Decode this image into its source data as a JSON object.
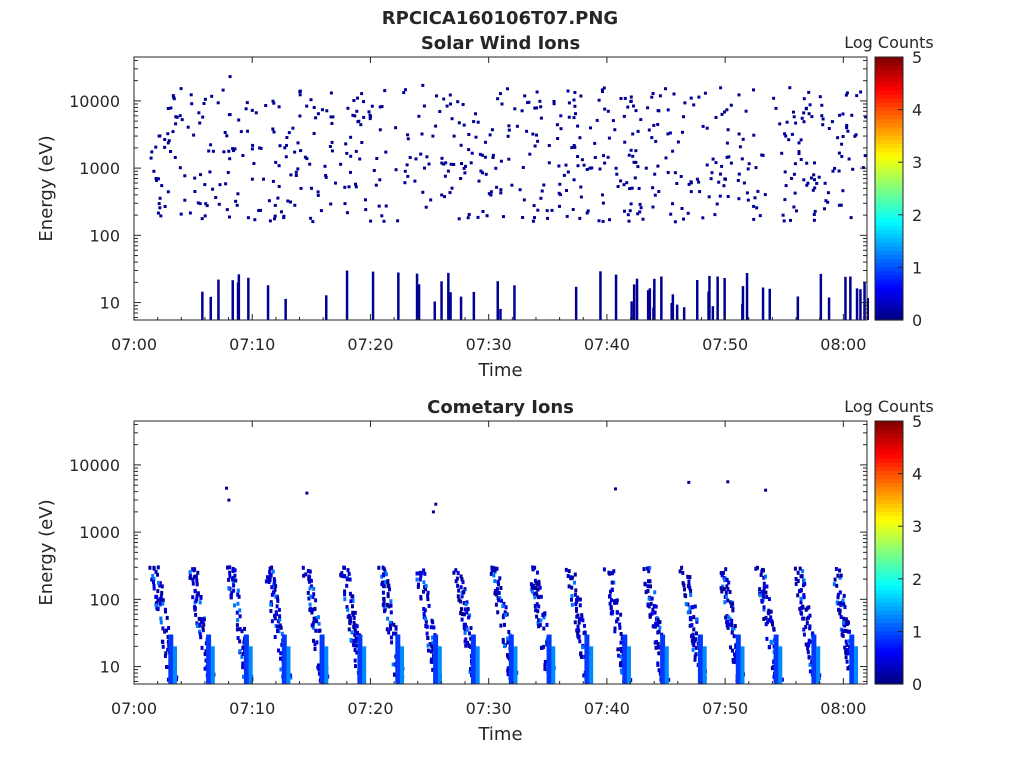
{
  "figure": {
    "title": "RPCICA160106T07.PNG"
  },
  "chart_data": [
    {
      "type": "heatmap",
      "title": "Solar Wind Ions",
      "xlabel": "Time",
      "ylabel": "Energy (eV)",
      "x_ticks": [
        "07:00",
        "07:10",
        "07:20",
        "07:30",
        "07:40",
        "07:50",
        "08:00"
      ],
      "x_range_minutes": [
        0,
        62
      ],
      "y_scale": "log",
      "y_range": [
        5.5,
        45000
      ],
      "y_ticks": [
        {
          "value": 10,
          "label": "10"
        },
        {
          "value": 100,
          "label": "100"
        },
        {
          "value": 1000,
          "label": "1000"
        },
        {
          "value": 10000,
          "label": "10000"
        }
      ],
      "colorbar": {
        "title": "Log Counts",
        "range": [
          0,
          5
        ],
        "ticks": [
          "0",
          "1",
          "2",
          "3",
          "4",
          "5"
        ],
        "colormap": "jet"
      },
      "description_of_data": "sparse single-count (log counts ~0) speckle scattered across 150 eV - 20 keV for the full hour, plus short vertical streaks at 6-30 eV",
      "bins": [
        {
          "t": 3.2,
          "e": 12000,
          "c": 0.1
        },
        {
          "t": 8.0,
          "e": 23000,
          "c": 0.1
        },
        {
          "t": 24.3,
          "e": 17000,
          "c": 0.1
        },
        {
          "t": 2.0,
          "e": 3000,
          "c": 0.1
        },
        {
          "t": 5.5,
          "e": 800,
          "c": 0.1
        },
        {
          "t": 10.5,
          "e": 2000,
          "c": 0.1
        },
        {
          "t": 14.0,
          "e": 500,
          "c": 0.1
        },
        {
          "t": 18.2,
          "e": 1500,
          "c": 0.1
        },
        {
          "t": 22.0,
          "e": 4000,
          "c": 0.1
        },
        {
          "t": 27.5,
          "e": 700,
          "c": 0.1
        },
        {
          "t": 31.0,
          "e": 9000,
          "c": 0.1
        },
        {
          "t": 35.0,
          "e": 1200,
          "c": 0.1
        },
        {
          "t": 39.5,
          "e": 400,
          "c": 0.1
        },
        {
          "t": 44.0,
          "e": 2500,
          "c": 0.1
        },
        {
          "t": 47.0,
          "e": 11000,
          "c": 0.1
        },
        {
          "t": 51.5,
          "e": 600,
          "c": 0.1
        },
        {
          "t": 55.0,
          "e": 3000,
          "c": 0.1
        },
        {
          "t": 59.0,
          "e": 900,
          "c": 0.1
        },
        {
          "t": 61.0,
          "e": 12000,
          "c": 0.1
        }
      ]
    },
    {
      "type": "heatmap",
      "title": "Cometary Ions",
      "xlabel": "Time",
      "ylabel": "Energy (eV)",
      "x_ticks": [
        "07:00",
        "07:10",
        "07:20",
        "07:30",
        "07:40",
        "07:50",
        "08:00"
      ],
      "x_range_minutes": [
        0,
        62
      ],
      "y_scale": "log",
      "y_range": [
        5.5,
        45000
      ],
      "y_ticks": [
        {
          "value": 10,
          "label": "10"
        },
        {
          "value": 100,
          "label": "100"
        },
        {
          "value": 1000,
          "label": "1000"
        },
        {
          "value": 10000,
          "label": "10000"
        }
      ],
      "colorbar": {
        "title": "Log Counts",
        "range": [
          0,
          5
        ],
        "ticks": [
          "0",
          "1",
          "2",
          "3",
          "4",
          "5"
        ],
        "colormap": "jet"
      },
      "description_of_data": "periodic energy-dispersed streaks about every 3.2 minutes, descending from ~300 eV to ~6 eV, with sparse points at 2-6 keV",
      "sweep_times_minutes": [
        2.2,
        5.4,
        8.6,
        11.8,
        15.0,
        18.2,
        21.4,
        24.6,
        27.8,
        31.0,
        34.2,
        37.4,
        40.6,
        43.8,
        47.0,
        50.2,
        53.4,
        56.6,
        59.8
      ],
      "sweep_peak_energy_ev": 300,
      "sweep_min_energy_ev": 6,
      "sweep_peak_log_counts": 1.2,
      "high_energy_points": [
        {
          "t": 7.7,
          "e": 4500
        },
        {
          "t": 7.9,
          "e": 3000
        },
        {
          "t": 14.5,
          "e": 3800
        },
        {
          "t": 25.4,
          "e": 2600
        },
        {
          "t": 25.2,
          "e": 2000
        },
        {
          "t": 40.6,
          "e": 4400
        },
        {
          "t": 46.8,
          "e": 5500
        },
        {
          "t": 50.1,
          "e": 5600
        },
        {
          "t": 53.3,
          "e": 4200
        }
      ]
    }
  ]
}
